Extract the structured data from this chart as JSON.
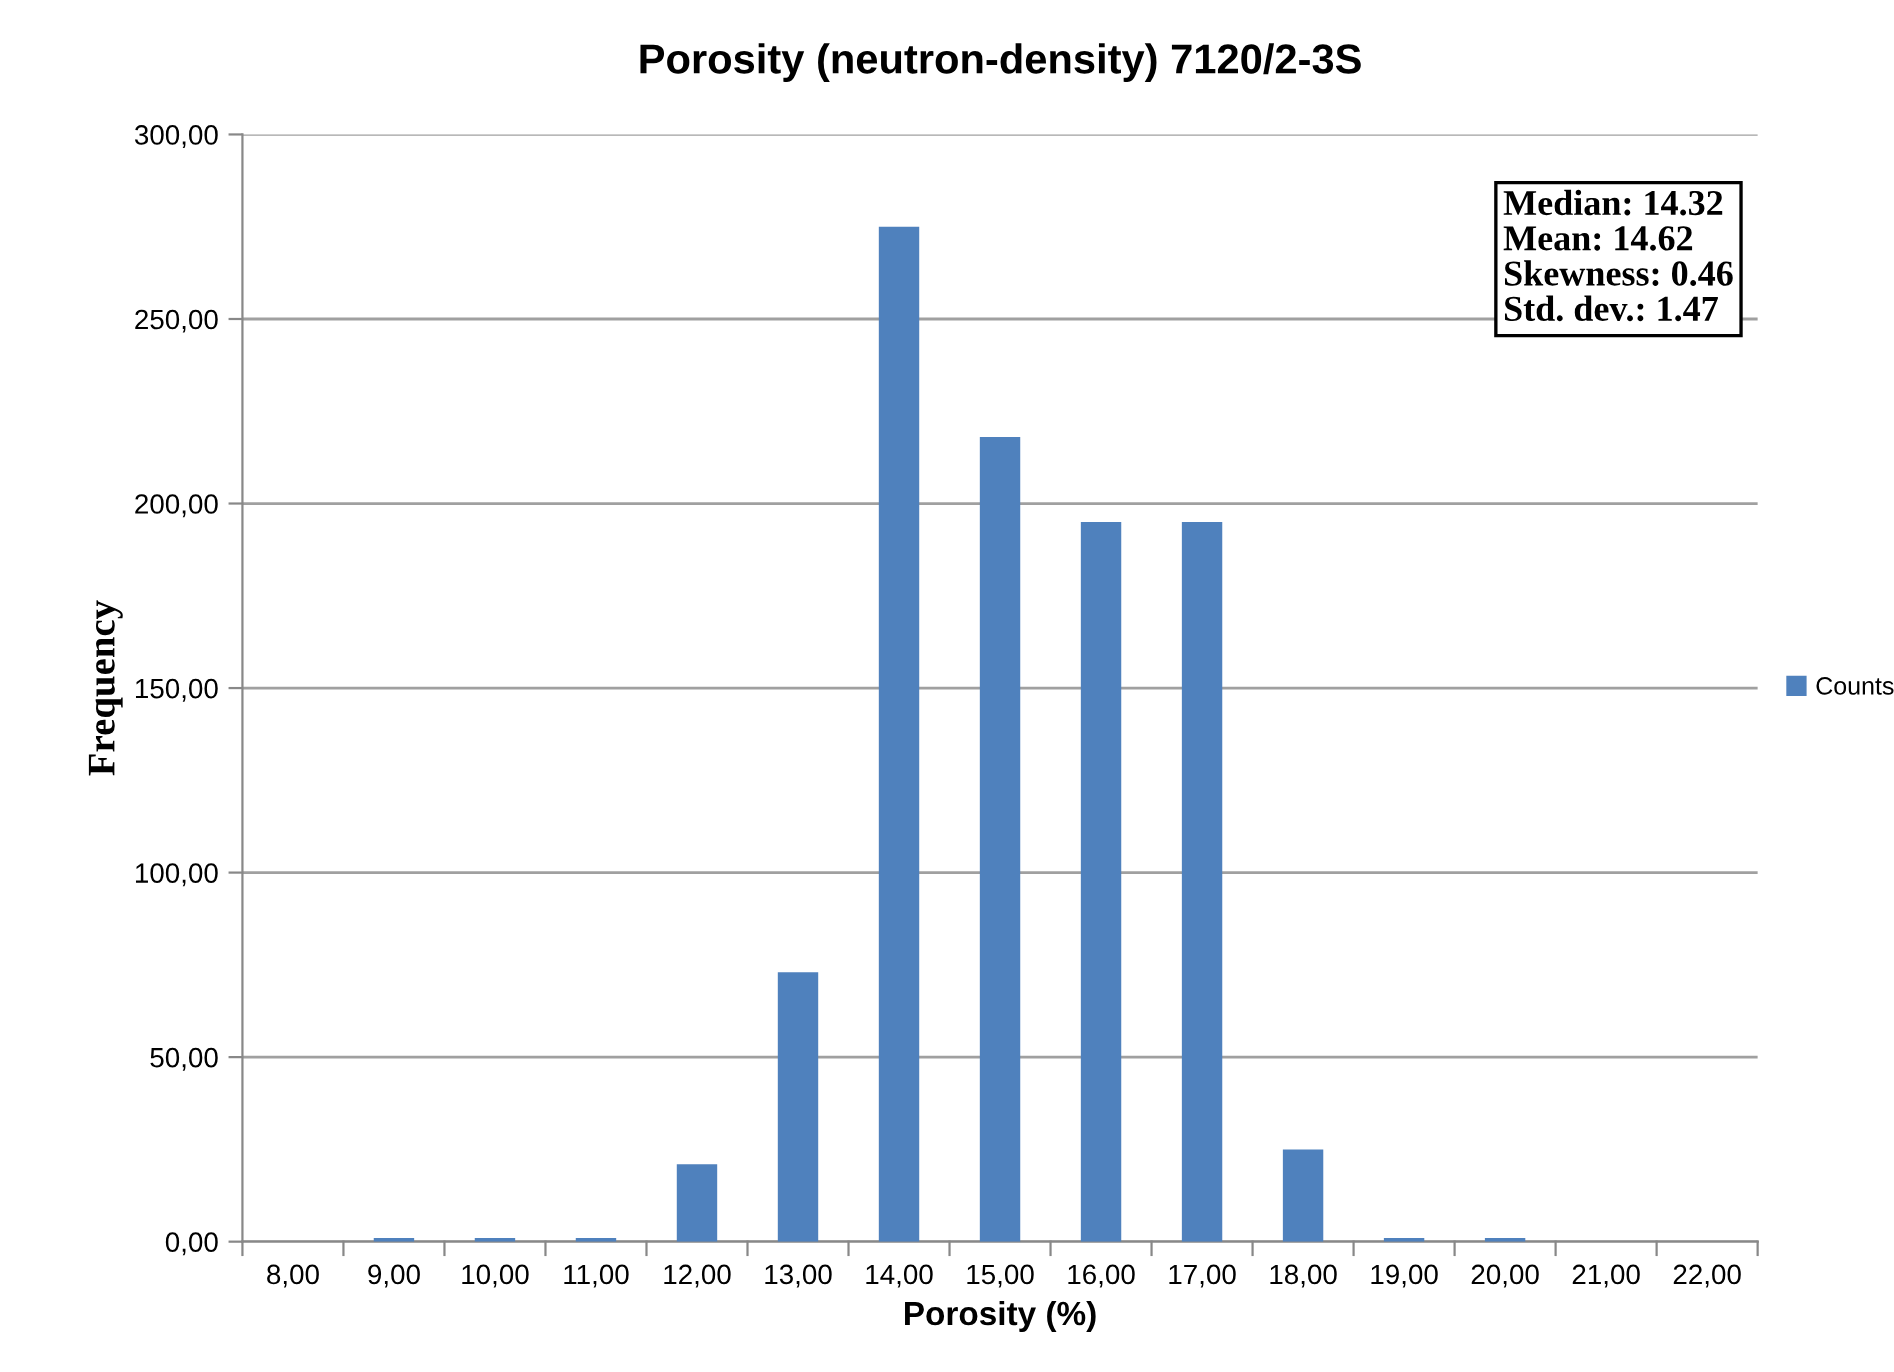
{
  "chart_data": {
    "type": "bar",
    "title": "Porosity (neutron-density) 7120/2-3S",
    "xlabel": "Porosity (%)",
    "ylabel": "Frequency",
    "categories": [
      "8,00",
      "9,00",
      "10,00",
      "11,00",
      "12,00",
      "13,00",
      "14,00",
      "15,00",
      "16,00",
      "17,00",
      "18,00",
      "19,00",
      "20,00",
      "21,00",
      "22,00"
    ],
    "series": [
      {
        "name": "Counts",
        "color": "#4f81bd",
        "values": [
          0,
          1,
          1,
          1,
          21,
          73,
          275,
          218,
          195,
          195,
          25,
          1,
          1,
          0,
          0
        ]
      }
    ],
    "ylim": [
      0,
      300
    ],
    "yticks": [
      {
        "value": 0,
        "label": "0,00"
      },
      {
        "value": 50,
        "label": "50,00"
      },
      {
        "value": 100,
        "label": "100,00"
      },
      {
        "value": 150,
        "label": "150,00"
      },
      {
        "value": 200,
        "label": "200,00"
      },
      {
        "value": 250,
        "label": "250,00"
      },
      {
        "value": 300,
        "label": "300,00"
      }
    ],
    "grid": "y",
    "legend": "right",
    "annotations": [
      "Median: 14.32\nMean: 14.62\nSkewness: 0.46\nStd. dev.: 1.47"
    ]
  }
}
